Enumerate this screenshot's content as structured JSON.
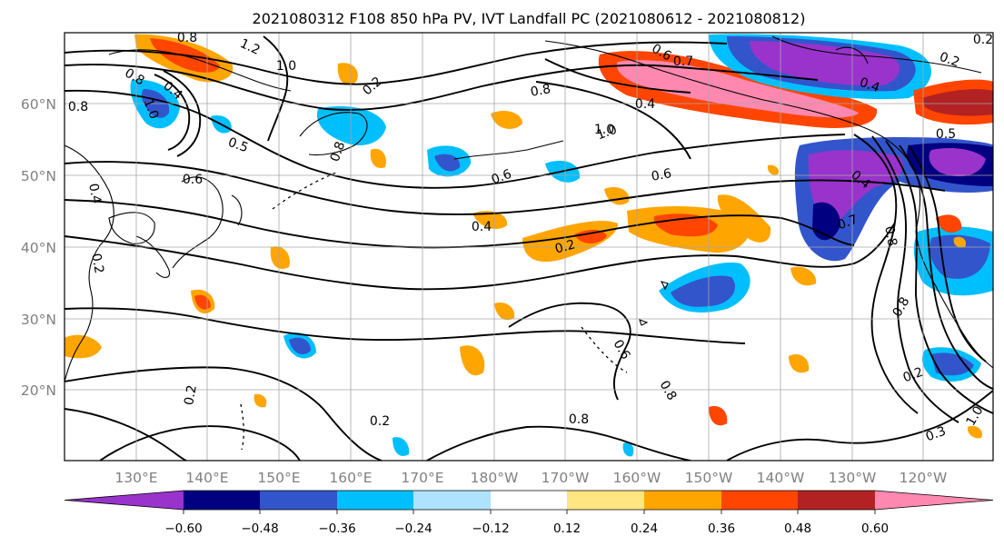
{
  "title": "2021080312 F108 850 hPa PV, IVT Landfall PC (2021080612 - 2021080812)",
  "axes": {
    "lat_labels": [
      "60°N",
      "50°N",
      "40°N",
      "30°N",
      "20°N"
    ],
    "lon_labels": [
      "130°E",
      "140°E",
      "150°E",
      "160°E",
      "170°E",
      "180°W",
      "170°W",
      "160°W",
      "150°W",
      "140°W",
      "130°W",
      "120°W"
    ]
  },
  "colorbar": {
    "colors": [
      "#9933cc",
      "#000080",
      "#3355cc",
      "#00bfff",
      "#aee2ff",
      "#ffffff",
      "#ffe680",
      "#ffa500",
      "#ff4500",
      "#b22222",
      "#ff88b0"
    ],
    "tick_labels": [
      "−0.60",
      "−0.48",
      "−0.36",
      "−0.24",
      "−0.12",
      "0.12",
      "0.24",
      "0.36",
      "0.48",
      "0.60"
    ]
  },
  "contour_labels": [
    "0.8",
    "1.2",
    "1.0",
    "0.8",
    "0.4",
    "0.2",
    "0.8",
    "0.5",
    "1.0",
    "0.6",
    "0.4",
    "0.8",
    "1.0",
    "0.6",
    "0.7",
    "0.4",
    "0.2",
    "0.8",
    "0.6",
    "0.4",
    "0.2",
    "0.6",
    "0.4",
    "0.7",
    "0.2",
    "0.8",
    "0.8",
    "0.2",
    "0.2",
    "0.3",
    "1.0",
    "0.6",
    "0.5",
    "0.4",
    "0.2",
    "0.8",
    "0.8",
    "1.0",
    "0.2"
  ]
}
